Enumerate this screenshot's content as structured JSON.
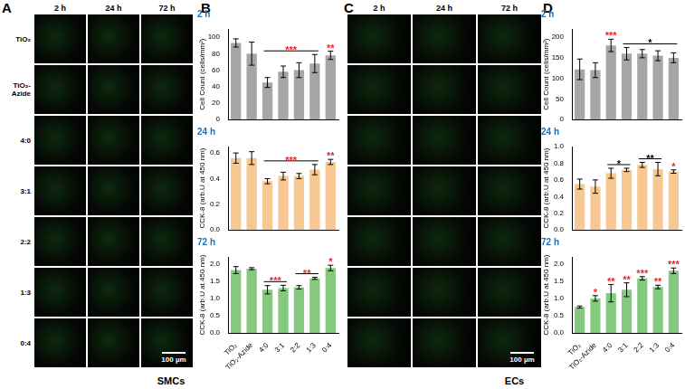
{
  "figure": {
    "panels": [
      {
        "letter": "A",
        "columns": [
          "2 h",
          "24 h",
          "72 h"
        ],
        "rows": [
          "TiO₂",
          "TiO₂-Azide",
          "4:0",
          "3:1",
          "2:2",
          "1:3",
          "0:4"
        ],
        "scale_bar": "100 µm"
      },
      {
        "letter": "B"
      },
      {
        "letter": "C",
        "columns": [
          "2 h",
          "24 h",
          "72 h"
        ],
        "scale_bar": "100 µm"
      },
      {
        "letter": "D"
      }
    ],
    "groups": [
      "SMCs",
      "ECs"
    ]
  },
  "chart_data": [
    {
      "type": "bar",
      "title": "2 h",
      "y_label": "Cell Count (cells/mm²)",
      "categories": [
        "TiO₂",
        "TiO₂-Azide",
        "4:0",
        "3:1",
        "2:2",
        "1:3",
        "0:4"
      ],
      "values": [
        93,
        80,
        45,
        58,
        60,
        68,
        78
      ],
      "errors": [
        5,
        14,
        6,
        7,
        9,
        11,
        5
      ],
      "color": "#a6a6a6",
      "ylim": [
        0,
        110
      ],
      "yticks": [
        0,
        20,
        40,
        60,
        80,
        100
      ],
      "grid": false,
      "tick_labels": "y",
      "annotations": [
        {
          "text": "***",
          "from": "4:0",
          "to": "1:3",
          "color": "#e3262b"
        },
        {
          "text": "**",
          "from": "0:4",
          "to": "0:4",
          "color": "#e3262b"
        }
      ]
    },
    {
      "type": "bar",
      "title": "24 h",
      "y_label": "CCK-8 (arb.U at 450 nm)",
      "categories": [
        "TiO₂",
        "TiO₂-Azide",
        "4:0",
        "3:1",
        "2:2",
        "1:3",
        "0:4"
      ],
      "values": [
        0.56,
        0.56,
        0.38,
        0.42,
        0.42,
        0.47,
        0.53
      ],
      "errors": [
        0.04,
        0.05,
        0.02,
        0.03,
        0.02,
        0.04,
        0.02
      ],
      "color": "#f7c891",
      "ylim": [
        0,
        0.65
      ],
      "yticks": [
        {
          "value": 0,
          "label": "0.0"
        },
        0.2,
        0.4,
        0.6
      ],
      "grid": false,
      "tick_labels": "y",
      "annotations": [
        {
          "text": "***",
          "from": "4:0",
          "to": "1:3",
          "color": "#e3262b"
        },
        {
          "text": "**",
          "from": "0:4",
          "to": "0:4",
          "color": "#e3262b"
        }
      ]
    },
    {
      "type": "bar",
      "title": "72 h",
      "y_label": "CCK-8 (arb.U at 450 nm)",
      "categories": [
        "TiO₂",
        "TiO₂-Azide",
        "4:0",
        "3:1",
        "2:2",
        "1:3",
        "0:4"
      ],
      "values": [
        1.82,
        1.86,
        1.25,
        1.3,
        1.32,
        1.58,
        1.88
      ],
      "errors": [
        0.1,
        0.03,
        0.12,
        0.08,
        0.05,
        0.03,
        0.08
      ],
      "color": "#84c97e",
      "ylim": [
        0,
        2.2
      ],
      "yticks": [
        {
          "value": 0,
          "label": "0.0"
        },
        0.5,
        {
          "value": 1,
          "label": "1.0"
        },
        1.5,
        {
          "value": 2,
          "label": "2.0"
        }
      ],
      "grid": false,
      "annotations": [
        {
          "text": "***",
          "from": "4:0",
          "to": "3:1",
          "color": "#e3262b"
        },
        {
          "text": "**",
          "from": "2:2",
          "to": "1:3",
          "color": "#e3262b"
        },
        {
          "text": "*",
          "from": "0:4",
          "to": "0:4",
          "color": "#e3262b"
        }
      ]
    },
    {
      "type": "bar",
      "title": "2 h",
      "y_label": "Cell Count (cells/mm²)",
      "categories": [
        "TiO₂",
        "TiO₂-Azide",
        "4:0",
        "3:1",
        "2:2",
        "1:3",
        "0:4"
      ],
      "values": [
        122,
        120,
        180,
        160,
        160,
        155,
        150
      ],
      "errors": [
        25,
        18,
        15,
        15,
        10,
        12,
        12
      ],
      "color": "#a6a6a6",
      "ylim": [
        0,
        220
      ],
      "yticks": [
        0,
        50,
        100,
        150,
        200
      ],
      "grid": false,
      "tick_labels": "y",
      "annotations": [
        {
          "text": "***",
          "from": "4:0",
          "to": "4:0",
          "color": "#e3262b"
        },
        {
          "text": "*",
          "from": "3:1",
          "to": "0:4",
          "color": "#000000"
        }
      ]
    },
    {
      "type": "bar",
      "title": "24 h",
      "y_label": "CCK-8 (arb.U at 450 nm)",
      "categories": [
        "TiO₂",
        "TiO₂-Azide",
        "4:0",
        "3:1",
        "2:2",
        "1:3",
        "0:4"
      ],
      "values": [
        0.55,
        0.52,
        0.68,
        0.72,
        0.78,
        0.73,
        0.7
      ],
      "errors": [
        0.06,
        0.08,
        0.06,
        0.02,
        0.03,
        0.08,
        0.02
      ],
      "color": "#f7c891",
      "ylim": [
        0,
        1
      ],
      "yticks": [
        {
          "value": 0,
          "label": "0.0"
        },
        0.2,
        0.4,
        0.6,
        0.8,
        {
          "value": 1,
          "label": "1.0"
        }
      ],
      "grid": false,
      "tick_labels": "y",
      "annotations": [
        {
          "text": "*",
          "from": "4:0",
          "to": "3:1",
          "color": "#000000"
        },
        {
          "text": "**",
          "from": "2:2",
          "to": "1:3",
          "color": "#000000"
        },
        {
          "text": "*",
          "from": "0:4",
          "to": "0:4",
          "color": "#e3262b"
        }
      ]
    },
    {
      "type": "bar",
      "title": "72 h",
      "y_label": "CCK-8 (arb.U at 450 nm)",
      "categories": [
        "TiO₂",
        "TiO₂-Azide",
        "4:0",
        "3:1",
        "2:2",
        "1:3",
        "0:4"
      ],
      "values": [
        0.75,
        1.0,
        1.15,
        1.25,
        1.58,
        1.33,
        1.8
      ],
      "errors": [
        0.03,
        0.08,
        0.25,
        0.2,
        0.05,
        0.05,
        0.08
      ],
      "color": "#84c97e",
      "ylim": [
        0,
        2.2
      ],
      "yticks": [
        {
          "value": 0,
          "label": "0.0"
        },
        0.5,
        {
          "value": 1,
          "label": "1.0"
        },
        1.5,
        {
          "value": 2,
          "label": "2.0"
        }
      ],
      "grid": false,
      "annotations": [
        {
          "text": "*",
          "from": "TiO₂-Azide",
          "to": "TiO₂-Azide",
          "color": "#e3262b"
        },
        {
          "text": "**",
          "from": "4:0",
          "to": "4:0",
          "color": "#e3262b"
        },
        {
          "text": "**",
          "from": "3:1",
          "to": "3:1",
          "color": "#e3262b"
        },
        {
          "text": "***",
          "from": "2:2",
          "to": "2:2",
          "color": "#e3262b"
        },
        {
          "text": "**",
          "from": "1:3",
          "to": "1:3",
          "color": "#e3262b"
        },
        {
          "text": "***",
          "from": "0:4",
          "to": "0:4",
          "color": "#e3262b"
        }
      ]
    }
  ]
}
